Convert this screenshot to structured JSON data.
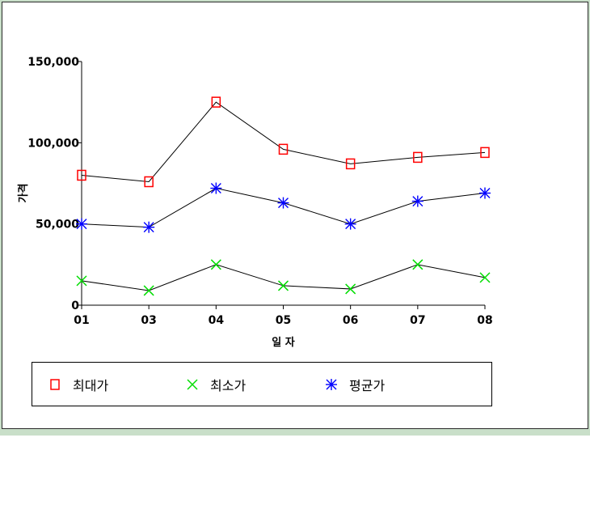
{
  "chart_data": {
    "type": "line",
    "ylabel": "가격",
    "xlabel": "일 자",
    "categories": [
      "01",
      "03",
      "04",
      "05",
      "06",
      "07",
      "08"
    ],
    "ylim": [
      0,
      150000
    ],
    "yticks": [
      "0",
      "50,000",
      "100,000",
      "150,000"
    ],
    "ytick_values": [
      0,
      50000,
      100000,
      150000
    ],
    "grid": false,
    "legend_position": "bottom",
    "series": [
      {
        "name": "최대가",
        "values": [
          80000,
          76000,
          125000,
          96000,
          87000,
          91000,
          94000
        ],
        "color": "#ff0000",
        "marker": "square"
      },
      {
        "name": "최소가",
        "values": [
          15000,
          9000,
          25000,
          12000,
          10000,
          25000,
          17000
        ],
        "color": "#00dd00",
        "marker": "x"
      },
      {
        "name": "평균가",
        "values": [
          50000,
          48000,
          72000,
          63000,
          50000,
          64000,
          69000
        ],
        "color": "#0000ff",
        "marker": "asterisk"
      }
    ]
  }
}
